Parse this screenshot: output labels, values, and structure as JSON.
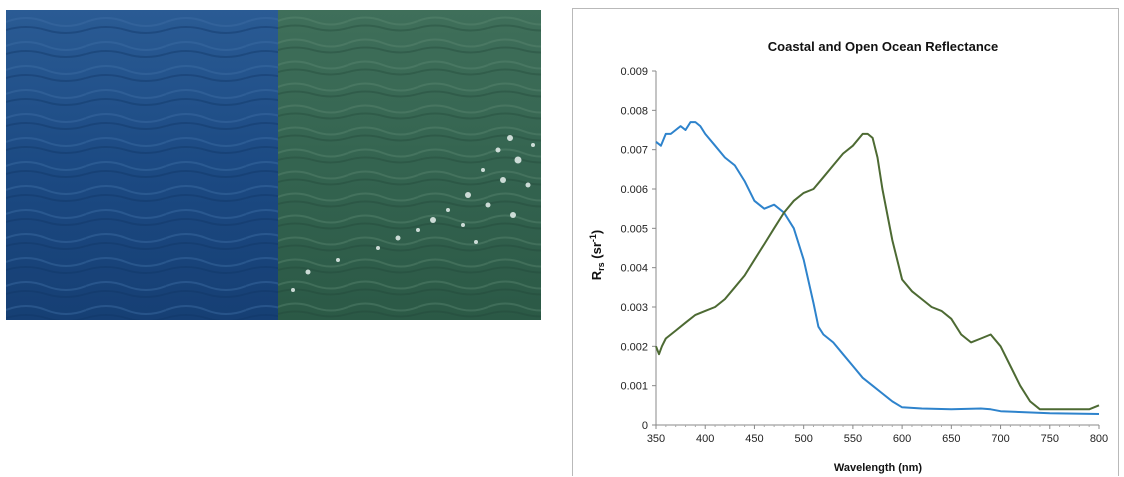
{
  "chart_data": {
    "type": "line",
    "title": "Coastal and Open Ocean Reflectance",
    "xlabel": "Wavelength (nm)",
    "ylabel": {
      "main": "R",
      "sub": "rs",
      "unit": " (sr",
      "sup": "-1",
      "close": ")"
    },
    "xlim": [
      350,
      800
    ],
    "ylim": [
      0,
      0.009
    ],
    "xticks": [
      "350",
      "400",
      "450",
      "500",
      "550",
      "600",
      "650",
      "700",
      "750",
      "800"
    ],
    "yticks": [
      "0",
      "0.001",
      "0.002",
      "0.003",
      "0.004",
      "0.005",
      "0.006",
      "0.007",
      "0.008",
      "0.009"
    ],
    "grid": false,
    "legend": false,
    "series": [
      {
        "color": "#2e83cc",
        "x": [
          350,
          355,
          360,
          365,
          370,
          375,
          380,
          385,
          390,
          395,
          400,
          410,
          420,
          430,
          440,
          450,
          460,
          470,
          480,
          490,
          500,
          510,
          515,
          520,
          530,
          540,
          550,
          560,
          570,
          580,
          590,
          600,
          620,
          650,
          680,
          690,
          700,
          750,
          800
        ],
        "y": [
          0.0072,
          0.0071,
          0.0074,
          0.0074,
          0.0075,
          0.0076,
          0.0075,
          0.0077,
          0.0077,
          0.0076,
          0.0074,
          0.0071,
          0.0068,
          0.0066,
          0.0062,
          0.0057,
          0.0055,
          0.0056,
          0.0054,
          0.005,
          0.0042,
          0.0031,
          0.0025,
          0.0023,
          0.0021,
          0.0018,
          0.0015,
          0.0012,
          0.001,
          0.0008,
          0.0006,
          0.00045,
          0.00042,
          0.0004,
          0.00042,
          0.0004,
          0.00035,
          0.0003,
          0.00028
        ]
      },
      {
        "color": "#4d6a33",
        "x": [
          350,
          353,
          356,
          360,
          370,
          380,
          390,
          400,
          410,
          420,
          430,
          440,
          450,
          460,
          470,
          480,
          490,
          500,
          510,
          520,
          530,
          540,
          550,
          560,
          565,
          570,
          575,
          580,
          590,
          600,
          610,
          620,
          630,
          640,
          650,
          660,
          670,
          680,
          690,
          700,
          710,
          720,
          730,
          740,
          750,
          760,
          770,
          780,
          790,
          800
        ],
        "y": [
          0.002,
          0.0018,
          0.002,
          0.0022,
          0.0024,
          0.0026,
          0.0028,
          0.0029,
          0.003,
          0.0032,
          0.0035,
          0.0038,
          0.0042,
          0.0046,
          0.005,
          0.0054,
          0.0057,
          0.0059,
          0.006,
          0.0063,
          0.0066,
          0.0069,
          0.0071,
          0.0074,
          0.0074,
          0.0073,
          0.0068,
          0.006,
          0.0047,
          0.0037,
          0.0034,
          0.0032,
          0.003,
          0.0029,
          0.0027,
          0.0023,
          0.0021,
          0.0022,
          0.0023,
          0.002,
          0.0015,
          0.001,
          0.0006,
          0.0004,
          0.0004,
          0.0004,
          0.0004,
          0.0004,
          0.0004,
          0.0005
        ]
      }
    ]
  },
  "photos": {
    "left": {
      "color_top": "#20508a",
      "color_bottom": "#143c72"
    },
    "right": {
      "color_top": "#3b6a55",
      "color_bottom": "#2c5a45"
    }
  }
}
